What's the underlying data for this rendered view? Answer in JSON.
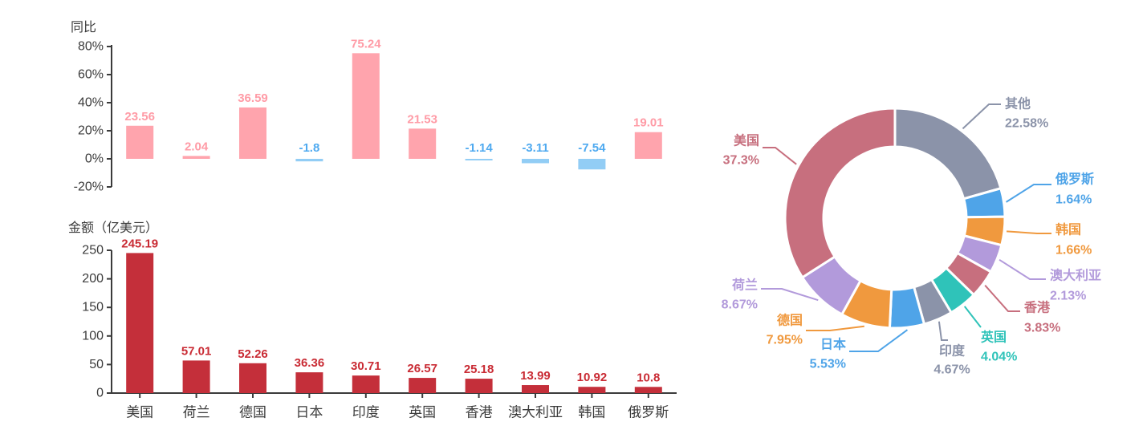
{
  "chart_data": [
    {
      "type": "bar",
      "title": "同比",
      "categories": [
        "美国",
        "荷兰",
        "德国",
        "日本",
        "印度",
        "英国",
        "香港",
        "澳大利亚",
        "韩国",
        "俄罗斯"
      ],
      "categories_en": [
        "usa",
        "netherlands",
        "germany",
        "japan",
        "india",
        "uk",
        "hongkong",
        "australia",
        "korea",
        "russia"
      ],
      "values": [
        23.56,
        2.04,
        36.59,
        -1.8,
        75.24,
        21.53,
        -1.14,
        -3.11,
        -7.54,
        19.01
      ],
      "value_suffix": "%",
      "ylim": [
        -20,
        80
      ],
      "ytick_labels": [
        "80%",
        "60%",
        "40%",
        "20%",
        "0%",
        "-20%"
      ],
      "grid": false,
      "positive_color": "#FFA4AD",
      "negative_color": "#92CDF5",
      "positive_label_color": "#FF9BA6",
      "negative_label_color": "#4FAAF0",
      "axis_color": "#3B3B3B"
    },
    {
      "type": "bar",
      "title": "金额（亿美元）",
      "categories": [
        "美国",
        "荷兰",
        "德国",
        "日本",
        "印度",
        "英国",
        "香港",
        "澳大利亚",
        "韩国",
        "俄罗斯"
      ],
      "categories_en": [
        "usa",
        "netherlands",
        "germany",
        "japan",
        "india",
        "uk",
        "hongkong",
        "australia",
        "korea",
        "russia"
      ],
      "values": [
        245.19,
        57.01,
        52.26,
        36.36,
        30.71,
        26.57,
        25.18,
        13.99,
        10.92,
        10.8
      ],
      "ylim": [
        0,
        250
      ],
      "ytick_labels": [
        "250",
        "200",
        "150",
        "100",
        "50",
        "0"
      ],
      "grid": false,
      "bar_color": "#C42F3A",
      "label_color": "#C92B34",
      "axis_color": "#3B3B3B"
    },
    {
      "type": "pie",
      "donut": true,
      "legend_position": "around-callouts",
      "slices": [
        {
          "en": "others",
          "name": "其他",
          "pct": 22.58,
          "color": "#8B93A9"
        },
        {
          "en": "russia",
          "name": "俄罗斯",
          "pct": 1.64,
          "color": "#4FA4E8"
        },
        {
          "en": "korea",
          "name": "韩国",
          "pct": 1.66,
          "color": "#F0993E"
        },
        {
          "en": "australia",
          "name": "澳大利亚",
          "pct": 2.13,
          "color": "#B29ADB"
        },
        {
          "en": "hongkong",
          "name": "香港",
          "pct": 3.83,
          "color": "#C76F7E"
        },
        {
          "en": "uk",
          "name": "英国",
          "pct": 4.04,
          "color": "#2FC3B9"
        },
        {
          "en": "india",
          "name": "印度",
          "pct": 4.67,
          "color": "#8B93A9"
        },
        {
          "en": "japan",
          "name": "日本",
          "pct": 5.53,
          "color": "#4FA4E8"
        },
        {
          "en": "germany",
          "name": "德国",
          "pct": 7.95,
          "color": "#F0993E"
        },
        {
          "en": "netherlands",
          "name": "荷兰",
          "pct": 8.67,
          "color": "#B29ADB"
        },
        {
          "en": "usa",
          "name": "美国",
          "pct": 37.3,
          "color": "#C76F7E"
        }
      ]
    }
  ]
}
